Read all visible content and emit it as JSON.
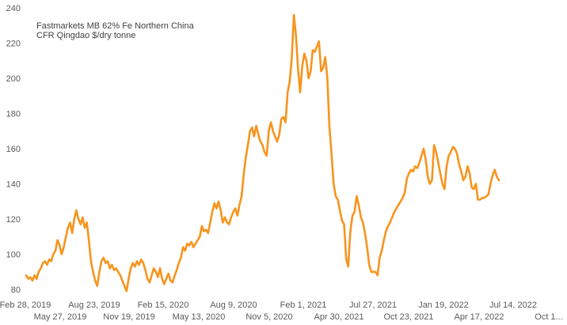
{
  "chart_data": {
    "type": "line",
    "annotation_lines": [
      "Fastmarkets MB 62% Fe Northern China",
      "CFR Qingdao $/dry tonne"
    ],
    "ylim": [
      80,
      240
    ],
    "yticks": [
      "80",
      "100",
      "120",
      "140",
      "160",
      "180",
      "200",
      "220",
      "240"
    ],
    "xticks_row1": [
      "Feb 28, 2019",
      "Aug 23, 2019",
      "Feb 15, 2020",
      "Aug 9, 2020",
      "Feb 1, 2021",
      "Jul 27, 2021",
      "Jan 19, 2022",
      "Jul 14, 2022"
    ],
    "xticks_row2": [
      "May 27, 2019",
      "Nov 19, 2019",
      "May 13, 2020",
      "Nov 5, 2020",
      "Apr 30, 2021",
      "Oct 23, 2021",
      "Apr 17, 2022",
      "Oct 1..."
    ],
    "grid": false,
    "legend": "none",
    "line_color": "#F7941D",
    "series": [
      {
        "values": [
          88,
          86,
          87,
          85,
          88,
          86,
          90,
          92,
          95,
          96,
          94,
          97,
          96,
          100,
          102,
          108,
          105,
          100,
          104,
          110,
          115,
          118,
          112,
          120,
          125,
          120,
          117,
          121,
          115,
          118,
          108,
          96,
          90,
          85,
          82,
          90,
          96,
          98,
          95,
          96,
          92,
          94,
          91,
          92,
          90,
          88,
          85,
          82,
          79,
          86,
          92,
          95,
          93,
          96,
          94,
          97,
          95,
          91,
          86,
          84,
          88,
          92,
          90,
          87,
          92,
          86,
          83,
          86,
          89,
          85,
          84,
          88,
          91,
          95,
          98,
          104,
          102,
          106,
          105,
          107,
          104,
          106,
          108,
          110,
          116,
          113,
          114,
          112,
          118,
          124,
          129,
          126,
          130,
          125,
          118,
          121,
          118,
          117,
          121,
          124,
          126,
          122,
          128,
          133,
          145,
          155,
          162,
          170,
          172,
          167,
          173,
          168,
          164,
          162,
          158,
          156,
          170,
          175,
          170,
          167,
          164,
          168,
          177,
          178,
          175,
          192,
          198,
          212,
          236,
          224,
          205,
          192,
          207,
          214,
          210,
          200,
          204,
          216,
          215,
          218,
          221,
          204,
          206,
          212,
          200,
          172,
          157,
          140,
          133,
          131,
          125,
          119,
          117,
          97,
          93,
          113,
          122,
          124,
          133,
          128,
          121,
          118,
          112,
          104,
          94,
          90,
          90,
          90,
          88,
          98,
          102,
          108,
          113,
          116,
          118,
          121,
          124,
          126,
          128,
          130,
          132,
          135,
          143,
          146,
          148,
          147,
          150,
          149,
          152,
          156,
          160,
          154,
          144,
          140,
          142,
          162,
          158,
          152,
          146,
          140,
          137,
          150,
          156,
          158,
          161,
          160,
          157,
          151,
          147,
          142,
          144,
          150,
          146,
          138,
          137,
          140,
          131,
          131,
          132,
          132,
          133,
          134,
          140,
          145,
          148,
          144,
          142
        ]
      }
    ]
  }
}
